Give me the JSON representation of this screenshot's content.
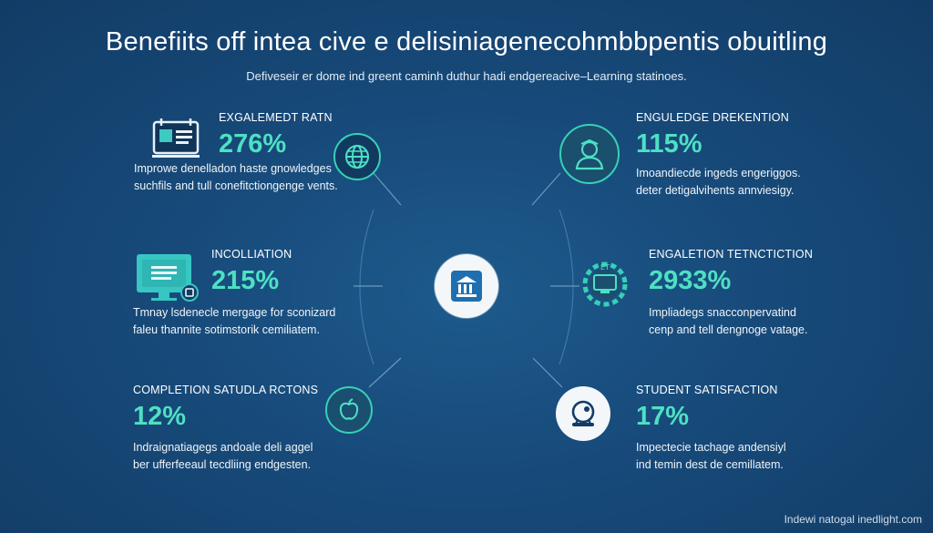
{
  "title": "Benefiits off intea cive e delisiniagenecohmbbpentis obuitling",
  "subtitle": "Defiveseir er dome ind greent caminh duthur hadi endgereacive–Learning statinoes.",
  "footer": "Indewi natogal inedlight.com",
  "metrics": {
    "top_left": {
      "label": "EXGALEMEDT RATN",
      "value": "276%",
      "desc_line1": "Improwe denelladon haste gnowledges",
      "desc_line2": "suchfils and tull conefitctiongenge vents.",
      "icon": "calendar-monitor-icon",
      "badge_icon": "globe-icon"
    },
    "mid_left": {
      "label": "INCOLLIATION",
      "value": "215%",
      "desc_line1": "Tmnay lsdenecle mergage for sconizard",
      "desc_line2": "faleu thannite sotimstorik cemiliatem.",
      "icon": "monitor-icon"
    },
    "bottom_left": {
      "label": "COMPLETION SATUDLA RCTONS",
      "value": "12%",
      "desc_line1": "Indraignatiagegs andoale deli aggel",
      "desc_line2": "ber ufferfeeaul tecdliing endgesten.",
      "badge_icon": "apple-icon"
    },
    "top_right": {
      "label": "ENGULEDGE DREKENTION",
      "value": "115%",
      "desc_line1": "Imoandiecde ingeds engeriggos.",
      "desc_line2": "deter detigalvihents annviesigy.",
      "badge_icon": "student-icon"
    },
    "mid_right": {
      "label": "ENGALETION TETNCTICTION",
      "value": "2933%",
      "desc_line1": "Impliadegs snacconpervatind",
      "desc_line2": "cenp and tell dengnoge vatage.",
      "badge_icon": "gear-monitor-icon"
    },
    "bottom_right": {
      "label": "STUDENT SATISFACTION",
      "value": "17%",
      "desc_line1": "Impectecie tachage andensiyl",
      "desc_line2": "ind temin dest de cemillatem.",
      "badge_icon": "headset-icon"
    }
  },
  "center_icon": "institution-icon",
  "colors": {
    "background": "#174a7a",
    "accent": "#4ee0c4",
    "text": "#ffffff"
  }
}
